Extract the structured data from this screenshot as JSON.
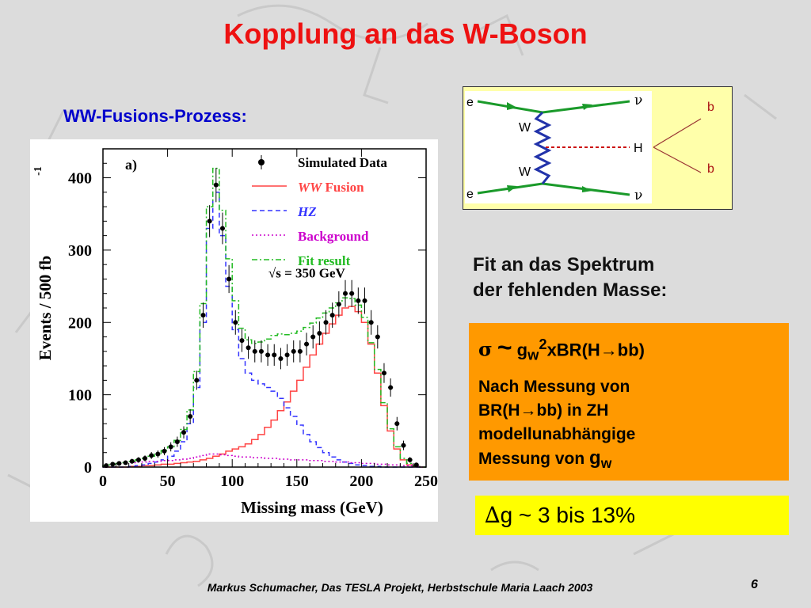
{
  "slide": {
    "title": "Kopplung an das W-Boson",
    "subtitle": "WW-Fusions-Prozess:",
    "fit_label_line1": "Fit an das Spektrum",
    "fit_label_line2": "der fehlenden Masse:",
    "footer": "Markus Schumacher, Das TESLA Projekt, Herbstschule Maria Laach 2003",
    "page_number": "6"
  },
  "formula_box": {
    "sigma": "σ",
    "tilde": "~",
    "g": "g",
    "g_sub": "w",
    "g_sup": "2",
    "rest": "xBR(H",
    "arrow": "→",
    "bb_close": "bb)",
    "line1": "Nach Messung von",
    "line2a": "BR(H",
    "line2b": "bb) in ZH",
    "line3": "modellunabhängige",
    "line4": "Messung von ",
    "g_last": "g",
    "g_last_sub": "w"
  },
  "result_box": {
    "delta": "∆",
    "text": "g ~ 3 bis 13%"
  },
  "feynman": {
    "e_top": "e",
    "nu_top": "ν",
    "e_bot": "e",
    "nu_bot": "ν",
    "w_top": "W",
    "w_bot": "W",
    "h": "H",
    "b_top": "b",
    "b_bot": "b",
    "colors": {
      "fermion": "#1a9a2a",
      "boson": "#2233aa",
      "higgs": "#cc1111",
      "b_lines": "#993333"
    }
  },
  "chart_data": {
    "type": "bar",
    "panel_label": "a)",
    "xlabel": "Missing mass (GeV)",
    "ylabel": "Events / 500 fb",
    "ylabel_sup": "-1",
    "x_ticks": [
      "0",
      "50",
      "100",
      "150",
      "200",
      "250"
    ],
    "y_ticks": [
      "0",
      "100",
      "200",
      "300",
      "400"
    ],
    "xlim": [
      0,
      250
    ],
    "ylim": [
      0,
      440
    ],
    "energy_label": "√s = 350 GeV",
    "legend": [
      {
        "label": "Simulated Data",
        "color": "#000000",
        "style": "points"
      },
      {
        "label_italic": "WW",
        "label": " Fusion",
        "color": "#ff4444",
        "style": "solid"
      },
      {
        "label_italic": "HZ",
        "label": "",
        "color": "#3333ff",
        "style": "dashed"
      },
      {
        "label": "Background",
        "color": "#cc00cc",
        "style": "dotted"
      },
      {
        "label": "Fit result",
        "color": "#22bb22",
        "style": "dashdot"
      }
    ],
    "bin_width": 5,
    "x_bins": [
      5,
      10,
      15,
      20,
      25,
      30,
      35,
      40,
      45,
      50,
      55,
      60,
      65,
      70,
      75,
      80,
      85,
      90,
      95,
      100,
      105,
      110,
      115,
      120,
      125,
      130,
      135,
      140,
      145,
      150,
      155,
      160,
      165,
      170,
      175,
      180,
      185,
      190,
      195,
      200,
      205,
      210,
      215,
      220,
      225,
      230,
      235,
      240,
      245,
      250
    ],
    "data_points": [
      2,
      4,
      5,
      6,
      8,
      10,
      12,
      16,
      18,
      22,
      28,
      35,
      48,
      70,
      120,
      210,
      340,
      390,
      330,
      260,
      200,
      175,
      165,
      160,
      160,
      155,
      155,
      150,
      155,
      160,
      160,
      170,
      180,
      185,
      200,
      210,
      225,
      240,
      240,
      230,
      230,
      200,
      180,
      130,
      110,
      60,
      30,
      10,
      3,
      0
    ],
    "series": [
      {
        "name": "WW Fusion",
        "values": [
          0,
          0,
          0,
          0,
          1,
          1,
          2,
          2,
          3,
          4,
          4,
          5,
          6,
          7,
          8,
          10,
          12,
          15,
          18,
          22,
          25,
          28,
          32,
          38,
          45,
          55,
          65,
          78,
          90,
          105,
          120,
          138,
          155,
          170,
          185,
          198,
          210,
          220,
          222,
          215,
          200,
          170,
          130,
          85,
          50,
          25,
          10,
          3,
          1,
          0
        ]
      },
      {
        "name": "HZ",
        "values": [
          0,
          0,
          0,
          0,
          1,
          2,
          3,
          5,
          7,
          10,
          15,
          22,
          35,
          60,
          110,
          200,
          330,
          380,
          320,
          250,
          190,
          150,
          130,
          120,
          115,
          110,
          105,
          95,
          82,
          70,
          58,
          45,
          35,
          27,
          20,
          14,
          10,
          7,
          5,
          3,
          2,
          1,
          1,
          0,
          0,
          0,
          0,
          0,
          0,
          0
        ]
      },
      {
        "name": "Background",
        "values": [
          2,
          4,
          5,
          6,
          6,
          7,
          7,
          8,
          8,
          9,
          9,
          10,
          11,
          12,
          14,
          16,
          18,
          18,
          17,
          16,
          15,
          14,
          14,
          13,
          13,
          12,
          12,
          11,
          11,
          10,
          10,
          10,
          9,
          9,
          8,
          8,
          7,
          7,
          6,
          6,
          5,
          5,
          4,
          4,
          3,
          3,
          2,
          2,
          1,
          0
        ]
      },
      {
        "name": "Fit result",
        "values": [
          2,
          4,
          5,
          6,
          8,
          10,
          12,
          15,
          18,
          23,
          28,
          37,
          52,
          79,
          132,
          226,
          360,
          413,
          355,
          288,
          230,
          192,
          176,
          171,
          173,
          177,
          182,
          184,
          183,
          185,
          188,
          193,
          199,
          206,
          213,
          220,
          227,
          234,
          233,
          224,
          207,
          172,
          135,
          89,
          53,
          28,
          12,
          5,
          2,
          0
        ]
      }
    ]
  }
}
